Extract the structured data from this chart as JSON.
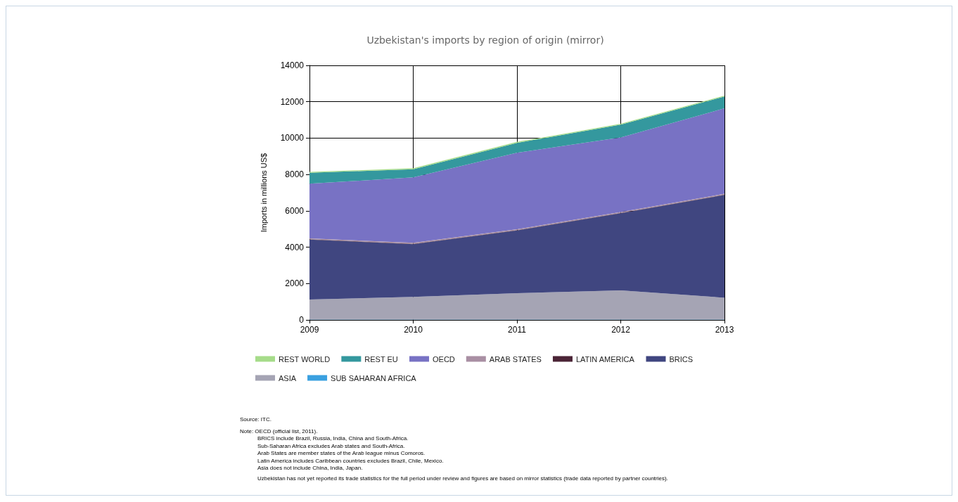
{
  "chart_data": {
    "type": "area",
    "title": "Uzbekistan's imports by region of origin (mirror)",
    "ylabel": "Imports in millions US$",
    "stacked": true,
    "categories": [
      "2009",
      "2010",
      "2011",
      "2012",
      "2013"
    ],
    "ylim": [
      0,
      14000
    ],
    "yticks": [
      0,
      2000,
      4000,
      6000,
      8000,
      10000,
      12000,
      14000
    ],
    "grid": true,
    "legend": "bottom",
    "marker": "none",
    "series": [
      {
        "name": "SUB SAHARAN AFRICA",
        "color": "#3aa0e0",
        "values": [
          20,
          20,
          20,
          20,
          20
        ]
      },
      {
        "name": "ASIA",
        "color": "#a5a4b4",
        "values": [
          1100,
          1250,
          1450,
          1600,
          1200
        ]
      },
      {
        "name": "BRICS",
        "color": "#404680",
        "values": [
          3300,
          2900,
          3450,
          4250,
          5650
        ]
      },
      {
        "name": "LATIN AMERICA",
        "color": "#4b2436",
        "values": [
          20,
          20,
          20,
          20,
          20
        ]
      },
      {
        "name": "ARAB STATES",
        "color": "#a98fa3",
        "values": [
          50,
          50,
          50,
          50,
          50
        ]
      },
      {
        "name": "OECD",
        "color": "#7872c4",
        "values": [
          3000,
          3600,
          4200,
          4100,
          4700
        ]
      },
      {
        "name": "REST EU",
        "color": "#34989e",
        "values": [
          600,
          450,
          550,
          700,
          650
        ]
      },
      {
        "name": "REST WORLD",
        "color": "#a6dc8a",
        "values": [
          50,
          50,
          50,
          50,
          50
        ]
      }
    ],
    "annotations": [
      "Source: ITC.",
      "Note: OECD (official list, 2011).",
      "BRICS include Brazil, Russia, India, China and South-Africa.",
      "Sub-Saharan Africa excludes Arab states and South-Africa.",
      "Arab States are member states of the Arab league minus Comoros.",
      "Latin America includes Caribbean countries excludes Brazil, Chile, Mexico.",
      "Asia does not include China, India, Japan.",
      "Uzbekistan has not yet reported its trade statistics for the full period under review and figures are based on mirror statistics (trade data reported by partner countries)."
    ]
  }
}
